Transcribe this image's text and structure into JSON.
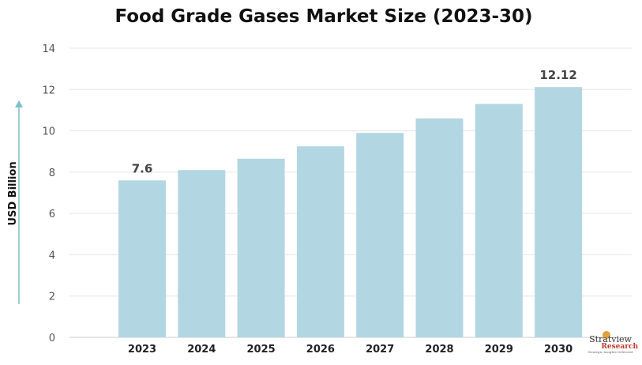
{
  "chart_data": {
    "type": "bar",
    "title": "Food Grade Gases Market Size (2023-30)",
    "ylabel": "USD Billion",
    "xlabel": "",
    "categories": [
      "2023",
      "2024",
      "2025",
      "2026",
      "2027",
      "2028",
      "2029",
      "2030"
    ],
    "values": [
      7.6,
      8.1,
      8.65,
      9.25,
      9.9,
      10.6,
      11.3,
      12.12
    ],
    "data_labels": {
      "0": "7.6",
      "7": "12.12"
    },
    "ylim": [
      0,
      14
    ],
    "yticks": [
      0,
      2,
      4,
      6,
      8,
      10,
      12,
      14
    ],
    "grid": true,
    "bar_color": "#b3d6e3",
    "axis_arrow_color": "#7fbfcc"
  },
  "logo": {
    "name": "Stratview",
    "sub": "Research",
    "tagline": "Strategic Insights Delivered"
  }
}
